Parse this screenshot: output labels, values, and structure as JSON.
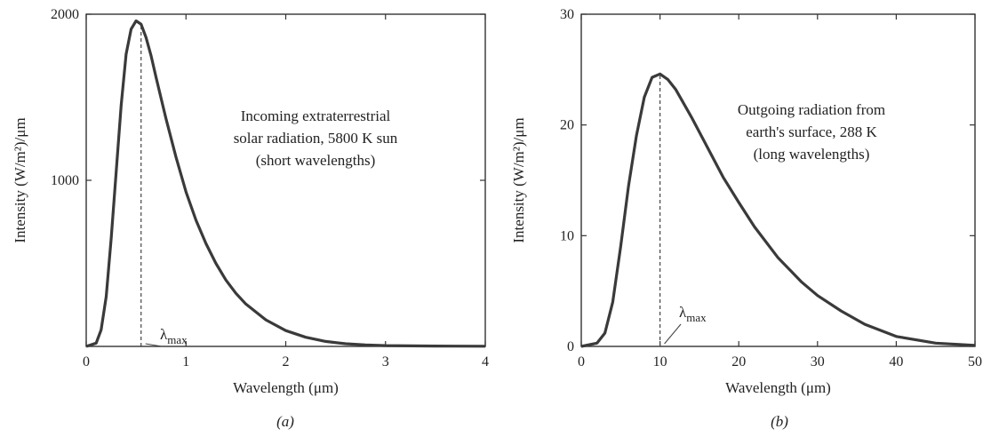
{
  "chart_data": [
    {
      "type": "line",
      "panel": "(a)",
      "xlabel": "Wavelength (μm)",
      "ylabel": "Intensity (W/m²)/μm",
      "xlim": [
        0,
        4
      ],
      "ylim": [
        0,
        2000
      ],
      "xticks": [
        0,
        1,
        2,
        3,
        4
      ],
      "yticks": [
        1000,
        2000
      ],
      "grid": false,
      "annotation_lines": [
        "Incoming extraterrestrial",
        "solar radiation, 5800 K sun",
        "(short wavelengths)"
      ],
      "peak_label": "λmax",
      "peak_x": 0.55,
      "series": [
        {
          "x": [
            0.0,
            0.1,
            0.15,
            0.2,
            0.25,
            0.3,
            0.35,
            0.4,
            0.45,
            0.5,
            0.55,
            0.6,
            0.65,
            0.7,
            0.8,
            0.9,
            1.0,
            1.1,
            1.2,
            1.3,
            1.4,
            1.5,
            1.6,
            1.8,
            2.0,
            2.2,
            2.4,
            2.6,
            2.8,
            3.0,
            3.5,
            4.0
          ],
          "y": [
            0,
            20,
            100,
            300,
            650,
            1050,
            1450,
            1760,
            1910,
            1960,
            1940,
            1860,
            1750,
            1620,
            1370,
            1140,
            930,
            760,
            620,
            500,
            400,
            320,
            255,
            160,
            95,
            55,
            30,
            16,
            9,
            5,
            2,
            1
          ]
        }
      ]
    },
    {
      "type": "line",
      "panel": "(b)",
      "xlabel": "Wavelength (μm)",
      "ylabel": "Intensity (W/m²)/μm",
      "xlim": [
        0,
        50
      ],
      "ylim": [
        0,
        30
      ],
      "xticks": [
        0,
        10,
        20,
        30,
        40,
        50
      ],
      "yticks": [
        0,
        10,
        20,
        30
      ],
      "grid": false,
      "annotation_lines": [
        "Outgoing radiation from",
        "earth's surface, 288 K",
        "(long wavelengths)"
      ],
      "peak_label": "λmax",
      "peak_x": 10,
      "series": [
        {
          "x": [
            0,
            2,
            3,
            4,
            5,
            6,
            7,
            8,
            9,
            10,
            11,
            12,
            14,
            16,
            18,
            20,
            22,
            25,
            28,
            30,
            33,
            36,
            40,
            45,
            50
          ],
          "y": [
            0,
            0.3,
            1.2,
            4,
            9,
            14.5,
            19,
            22.5,
            24.3,
            24.6,
            24.1,
            23.2,
            20.7,
            18,
            15.3,
            13,
            10.8,
            8,
            5.8,
            4.6,
            3.2,
            2.0,
            0.9,
            0.3,
            0.1
          ]
        }
      ]
    }
  ]
}
